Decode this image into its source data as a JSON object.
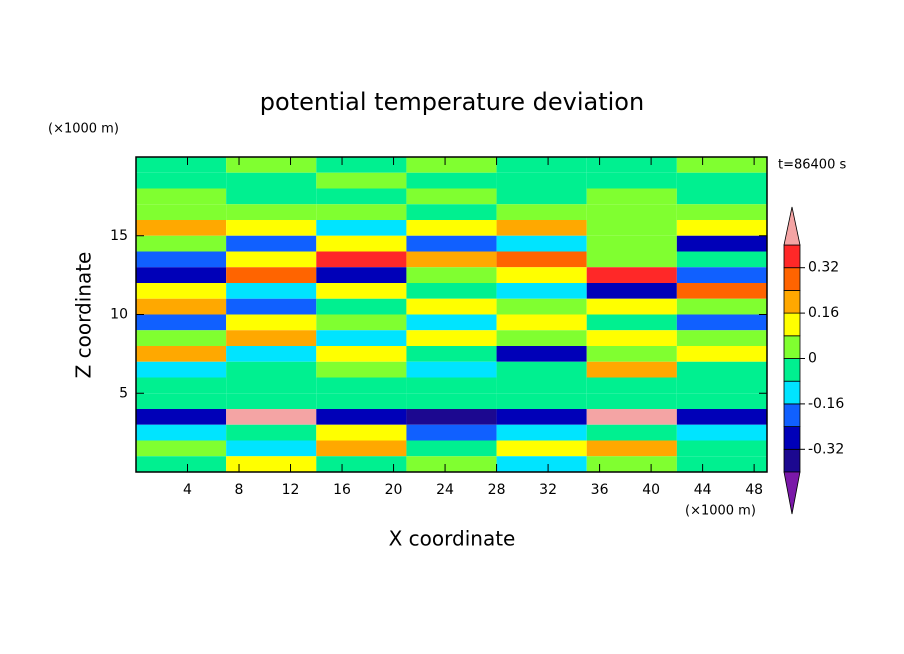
{
  "chart_data": {
    "type": "contour",
    "title": "potential temperature deviation",
    "xlabel": "X coordinate",
    "ylabel": "Z coordinate",
    "x_unit": "(×1000 m)",
    "y_unit": "(×1000 m)",
    "annotation": "t=86400 s",
    "xlim": [
      0,
      49
    ],
    "ylim": [
      0,
      20
    ],
    "xticks": [
      4,
      8,
      12,
      16,
      20,
      24,
      28,
      32,
      36,
      40,
      44,
      48
    ],
    "yticks": [
      5,
      10,
      15
    ],
    "x": [
      3.5,
      10.5,
      17.5,
      24.5,
      31.5,
      38.5,
      45.5
    ],
    "y": [
      19.5,
      18.5,
      17.5,
      16.5,
      15.5,
      14.5,
      13.5,
      12.5,
      11.5,
      10.5,
      9.5,
      8.5,
      7.5,
      6.5,
      5.5,
      4.5,
      3.5,
      2.5,
      1.5,
      0.5
    ],
    "z": [
      [
        -0.04,
        0.04,
        -0.04,
        0.04,
        -0.04,
        -0.04,
        0.04
      ],
      [
        -0.04,
        -0.04,
        0.04,
        -0.04,
        -0.04,
        -0.04,
        -0.04
      ],
      [
        0.04,
        -0.04,
        -0.04,
        0.04,
        -0.04,
        0.04,
        -0.04
      ],
      [
        0.04,
        0.04,
        0.04,
        -0.04,
        0.04,
        0.04,
        0.04
      ],
      [
        0.2,
        0.12,
        -0.12,
        0.12,
        0.2,
        0.04,
        0.12
      ],
      [
        0.04,
        -0.2,
        0.12,
        -0.2,
        -0.12,
        0.04,
        -0.28
      ],
      [
        -0.2,
        0.12,
        0.36,
        0.2,
        0.28,
        0.04,
        -0.04
      ],
      [
        -0.28,
        0.28,
        -0.28,
        0.04,
        0.12,
        0.36,
        -0.2
      ],
      [
        0.12,
        -0.12,
        0.12,
        -0.04,
        -0.12,
        -0.28,
        0.28
      ],
      [
        0.2,
        -0.2,
        -0.04,
        0.12,
        0.04,
        0.12,
        0.04
      ],
      [
        -0.2,
        0.12,
        0.04,
        -0.12,
        0.12,
        -0.04,
        -0.2
      ],
      [
        0.04,
        0.2,
        -0.12,
        0.12,
        0.04,
        0.12,
        0.04
      ],
      [
        0.2,
        -0.12,
        0.12,
        -0.04,
        -0.28,
        0.04,
        0.12
      ],
      [
        -0.12,
        -0.04,
        0.04,
        -0.12,
        -0.04,
        0.2,
        -0.04
      ],
      [
        -0.04,
        -0.04,
        -0.04,
        -0.04,
        -0.04,
        -0.04,
        -0.04
      ],
      [
        -0.04,
        -0.04,
        -0.04,
        -0.04,
        -0.04,
        -0.04,
        -0.04
      ],
      [
        -0.28,
        0.44,
        -0.28,
        -0.36,
        -0.28,
        0.44,
        -0.28
      ],
      [
        -0.12,
        -0.04,
        0.12,
        -0.2,
        -0.12,
        -0.04,
        -0.12
      ],
      [
        0.04,
        -0.12,
        0.2,
        -0.04,
        0.12,
        0.2,
        -0.04
      ],
      [
        -0.04,
        0.12,
        -0.04,
        0.04,
        -0.12,
        0.04,
        -0.04
      ]
    ],
    "levels": [
      -0.4,
      -0.32,
      -0.24,
      -0.16,
      -0.08,
      0,
      0.08,
      0.16,
      0.24,
      0.32,
      0.4
    ],
    "colors": [
      "#1c0890",
      "#0000b8",
      "#1060ff",
      "#00e4ff",
      "#00f090",
      "#80ff30",
      "#ffff00",
      "#ffa800",
      "#ff6400",
      "#ff2828"
    ],
    "under_color": "#7a18a8",
    "over_color": "#f4a4a4",
    "colorbar_ticks": [
      -0.32,
      -0.16,
      0,
      0.16,
      0.32
    ]
  }
}
